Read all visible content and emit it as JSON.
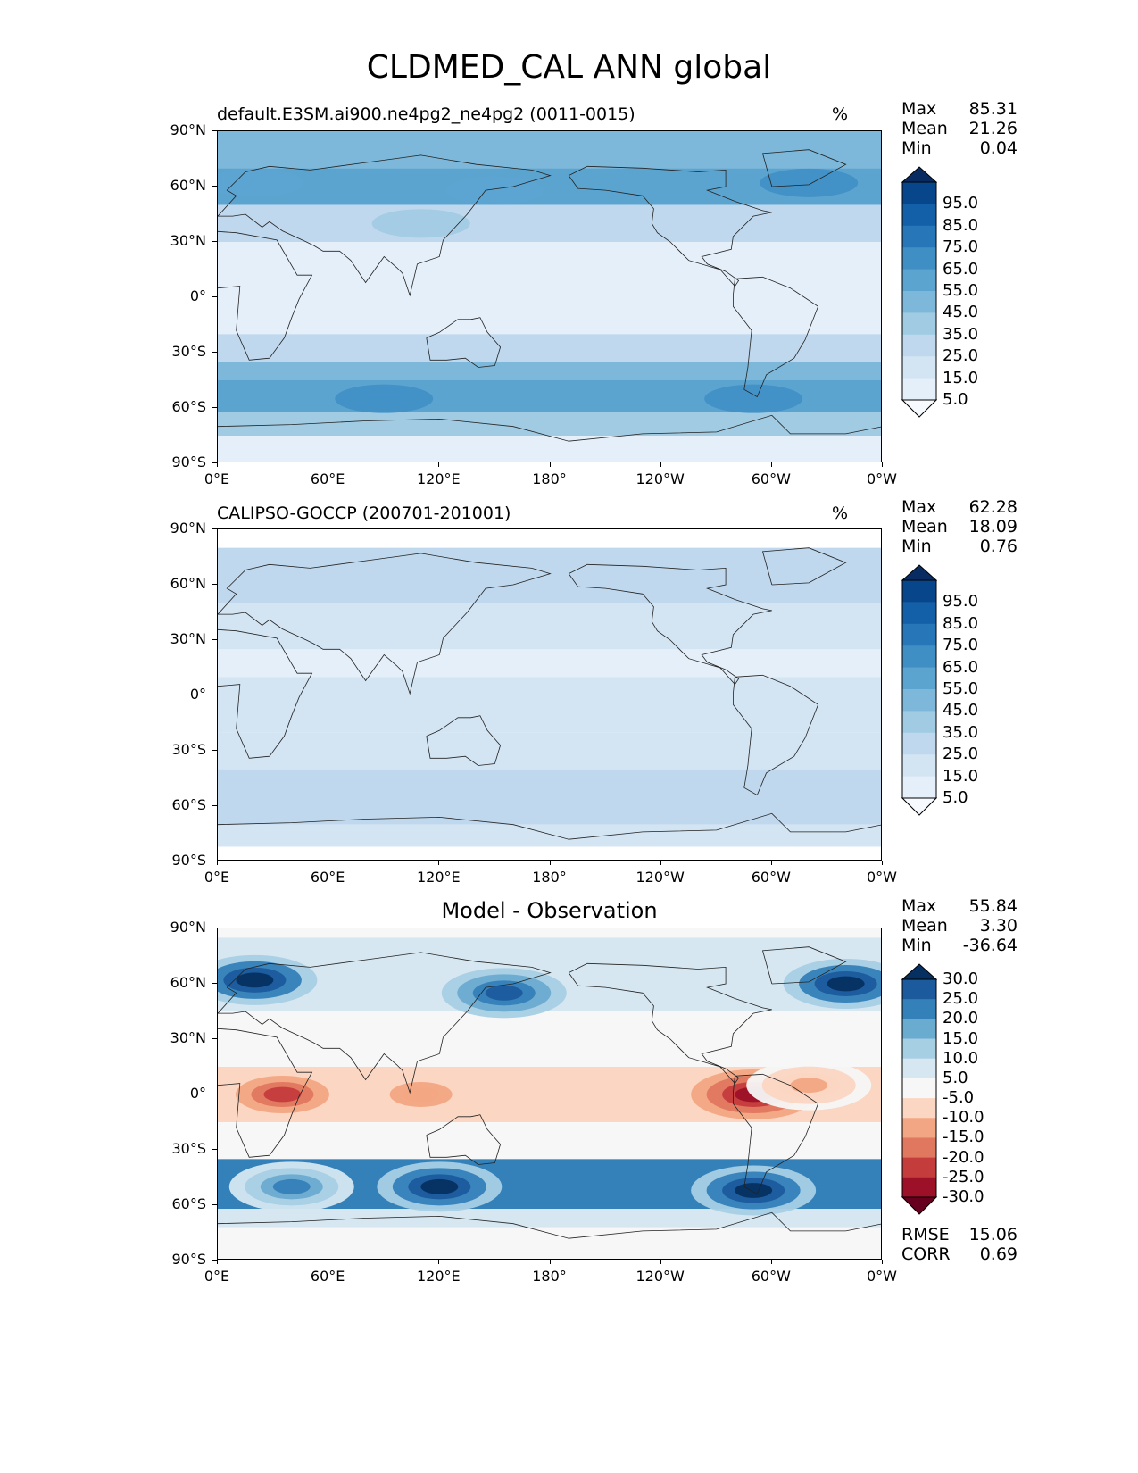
{
  "figure": {
    "title": "CLDMED_CAL ANN global"
  },
  "panels": [
    {
      "id": "model",
      "title": "default.E3SM.ai900.ne4pg2_ne4pg2 (0011-0015)",
      "units": "%",
      "stats": [
        {
          "label": "Max",
          "value": "85.31"
        },
        {
          "label": "Mean",
          "value": "21.26"
        },
        {
          "label": "Min",
          "value": "0.04"
        }
      ],
      "colorbar": {
        "ticks": [
          "95.0",
          "85.0",
          "75.0",
          "65.0",
          "55.0",
          "45.0",
          "35.0",
          "25.0",
          "15.0",
          "5.0"
        ],
        "colors": [
          "#f7fbff",
          "#e5eff9",
          "#d3e4f3",
          "#bfd8ed",
          "#a1cbe2",
          "#7db8da",
          "#5ca4d0",
          "#3f8fc5",
          "#2676b8",
          "#1460a8",
          "#08468b",
          "#082c61"
        ]
      }
    },
    {
      "id": "obs",
      "title": "CALIPSO-GOCCP (200701-201001)",
      "units": "%",
      "stats": [
        {
          "label": "Max",
          "value": "62.28"
        },
        {
          "label": "Mean",
          "value": "18.09"
        },
        {
          "label": "Min",
          "value": "0.76"
        }
      ],
      "colorbar": {
        "ticks": [
          "95.0",
          "85.0",
          "75.0",
          "65.0",
          "55.0",
          "45.0",
          "35.0",
          "25.0",
          "15.0",
          "5.0"
        ],
        "colors": [
          "#f7fbff",
          "#e5eff9",
          "#d3e4f3",
          "#bfd8ed",
          "#a1cbe2",
          "#7db8da",
          "#5ca4d0",
          "#3f8fc5",
          "#2676b8",
          "#1460a8",
          "#08468b",
          "#082c61"
        ]
      }
    },
    {
      "id": "diff",
      "title": "Model - Observation",
      "units": "",
      "stats": [
        {
          "label": "Max",
          "value": "55.84"
        },
        {
          "label": "Mean",
          "value": "3.30"
        },
        {
          "label": "Min",
          "value": "-36.64"
        }
      ],
      "extra_stats": [
        {
          "label": "RMSE",
          "value": "15.06"
        },
        {
          "label": "CORR",
          "value": "0.69"
        }
      ],
      "colorbar": {
        "ticks": [
          "30.0",
          "25.0",
          "20.0",
          "15.0",
          "10.0",
          "5.0",
          "-5.0",
          "-10.0",
          "-15.0",
          "-20.0",
          "-25.0",
          "-30.0"
        ],
        "colors": [
          "#67001f",
          "#9c1127",
          "#c43c3c",
          "#e0775f",
          "#f3a683",
          "#fbd6c2",
          "#f7f7f7",
          "#d6e7f1",
          "#a7cfe4",
          "#6aabd0",
          "#3480b9",
          "#1b5a9c",
          "#053061"
        ]
      }
    }
  ],
  "axes": {
    "lat_ticks": [
      "90°N",
      "60°N",
      "30°N",
      "0°",
      "30°S",
      "60°S",
      "90°S"
    ],
    "lon_ticks": [
      "0°E",
      "60°E",
      "120°E",
      "180°",
      "120°W",
      "60°W",
      "0°W"
    ]
  },
  "fields": {
    "model_bands": [
      {
        "lat": [
          90,
          70
        ],
        "value": 45
      },
      {
        "lat": [
          70,
          50
        ],
        "value": 55
      },
      {
        "lat": [
          50,
          30
        ],
        "value": 30
      },
      {
        "lat": [
          30,
          10
        ],
        "value": 12
      },
      {
        "lat": [
          10,
          -20
        ],
        "value": 8
      },
      {
        "lat": [
          -20,
          -35
        ],
        "value": 25
      },
      {
        "lat": [
          -35,
          -45
        ],
        "value": 45
      },
      {
        "lat": [
          -45,
          -62
        ],
        "value": 60
      },
      {
        "lat": [
          -62,
          -75
        ],
        "value": 40
      },
      {
        "lat": [
          -75,
          -90
        ],
        "value": 10
      }
    ],
    "obs_bands": [
      {
        "lat": [
          90,
          80
        ],
        "value": 0
      },
      {
        "lat": [
          80,
          50
        ],
        "value": 25
      },
      {
        "lat": [
          50,
          25
        ],
        "value": 22
      },
      {
        "lat": [
          25,
          10
        ],
        "value": 14
      },
      {
        "lat": [
          10,
          -20
        ],
        "value": 18
      },
      {
        "lat": [
          -20,
          -40
        ],
        "value": 22
      },
      {
        "lat": [
          -40,
          -70
        ],
        "value": 28
      },
      {
        "lat": [
          -70,
          -82
        ],
        "value": 22
      },
      {
        "lat": [
          -82,
          -90
        ],
        "value": 0
      }
    ],
    "diff_bands": [
      {
        "lat": [
          90,
          85
        ],
        "value": 0
      },
      {
        "lat": [
          85,
          45
        ],
        "value": 8
      },
      {
        "lat": [
          45,
          15
        ],
        "value": 0
      },
      {
        "lat": [
          15,
          -15
        ],
        "value": -6
      },
      {
        "lat": [
          -15,
          -35
        ],
        "value": 0
      },
      {
        "lat": [
          -35,
          -62
        ],
        "value": 22
      },
      {
        "lat": [
          -62,
          -72
        ],
        "value": 8
      },
      {
        "lat": [
          -72,
          -85
        ],
        "value": 0
      },
      {
        "lat": [
          -85,
          -90
        ],
        "value": 0
      }
    ],
    "diff_blobs": [
      {
        "lon": 20,
        "lat": 62,
        "value": 35
      },
      {
        "lon": 340,
        "lat": 60,
        "value": 35
      },
      {
        "lon": 155,
        "lat": 55,
        "value": 25
      },
      {
        "lon": 35,
        "lat": 0,
        "value": -22
      },
      {
        "lon": 110,
        "lat": 0,
        "value": -14
      },
      {
        "lon": 290,
        "lat": 0,
        "value": -28
      },
      {
        "lon": 320,
        "lat": 5,
        "value": -12
      },
      {
        "lon": 120,
        "lat": -50,
        "value": 35
      },
      {
        "lon": 290,
        "lat": -52,
        "value": 35
      },
      {
        "lon": 40,
        "lat": -50,
        "value": 22
      }
    ]
  }
}
